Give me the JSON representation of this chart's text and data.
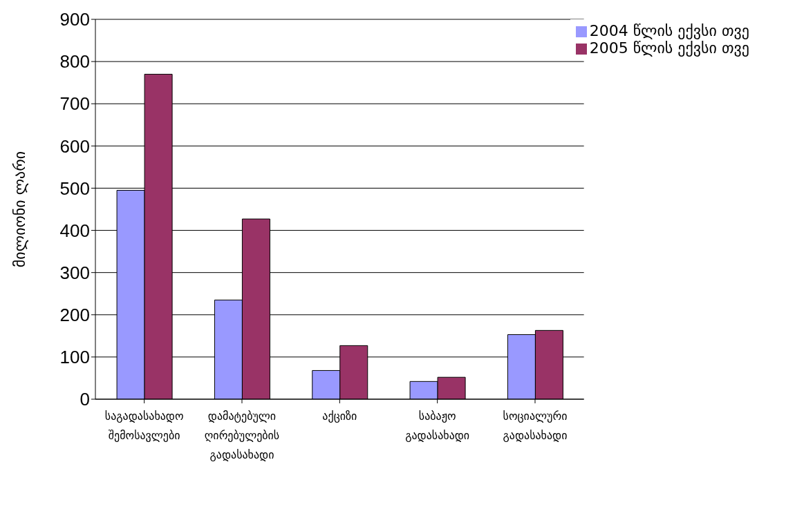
{
  "chart_data": {
    "type": "bar",
    "ylabel": "მილიონი ლარი",
    "categories": [
      "საგადასახადო შემოსავლები",
      "დამატებული ღირებულების გადასახადი",
      "აქციზი",
      "საბაჟო გადასახადი",
      "სოციალური გადასახადი"
    ],
    "series": [
      {
        "name": "2004 წლის ექვსი თვე",
        "color": "#9999ff",
        "values": [
          495,
          235,
          68,
          42,
          153
        ]
      },
      {
        "name": "2005 წლის ექვსი თვე",
        "color": "#993366",
        "values": [
          770,
          427,
          127,
          52,
          163
        ]
      }
    ],
    "ylim": [
      0,
      900
    ],
    "yticks": [
      0,
      100,
      200,
      300,
      400,
      500,
      600,
      700,
      800,
      900
    ],
    "grid": "y",
    "legend": "top right"
  }
}
